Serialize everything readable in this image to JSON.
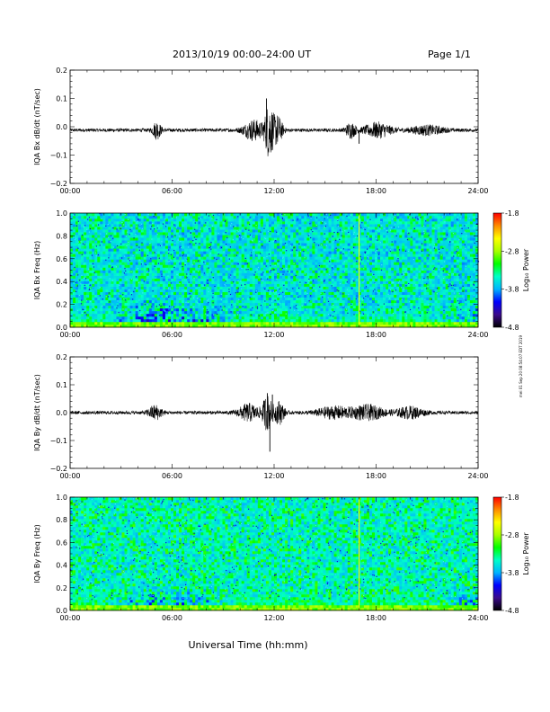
{
  "header": {
    "title": "2013/10/19   00:00–24:00 UT",
    "page": "Page 1/1"
  },
  "footer": {
    "xaxis_label": "Universal Time (hh:mm)",
    "side_note": "mei 01 Sep 20 08:54:07 EDT 2019"
  },
  "colorbar": {
    "label": "Log₁₀ Power",
    "ticks": [
      "-1.8",
      "-2.8",
      "-3.8",
      "-4.8"
    ],
    "tick_values": [
      -1.8,
      -2.8,
      -3.8,
      -4.8
    ],
    "range": [
      -4.8,
      -1.8
    ],
    "colors": [
      "#000000",
      "#3b0a8c",
      "#0000ff",
      "#00b4ff",
      "#00ffc8",
      "#00ff00",
      "#a8ff00",
      "#ffff00",
      "#ff8c00",
      "#ff0000"
    ]
  },
  "chart_data": [
    {
      "type": "line",
      "ylabel": "IQA Bx dB/dt (nT/sec)",
      "x_ticks": [
        "00:00",
        "06:00",
        "12:00",
        "18:00",
        "24:00"
      ],
      "x_tick_values": [
        0,
        6,
        12,
        18,
        24
      ],
      "xlim": [
        0,
        24
      ],
      "y_ticks": [
        "0.2",
        "0.1",
        "0.0",
        "−0.1",
        "−0.2"
      ],
      "y_tick_values": [
        0.2,
        0.1,
        0.0,
        -0.1,
        -0.2
      ],
      "ylim": [
        -0.2,
        0.2
      ],
      "baseline": -0.012,
      "noise_amplitude": 0.006,
      "bursts": [
        {
          "t": 5.1,
          "amp": 0.03,
          "width": 0.25
        },
        {
          "t": 10.8,
          "amp": 0.035,
          "width": 0.6
        },
        {
          "t": 11.7,
          "amp": 0.09,
          "width": 0.25
        },
        {
          "t": 12.2,
          "amp": 0.05,
          "width": 0.3
        },
        {
          "t": 16.5,
          "amp": 0.025,
          "width": 0.3
        },
        {
          "t": 18.1,
          "amp": 0.025,
          "width": 0.8
        },
        {
          "t": 21.0,
          "amp": 0.015,
          "width": 1.0
        }
      ],
      "spikes": [
        {
          "t": 11.55,
          "value": 0.1
        },
        {
          "t": 11.9,
          "value": -0.07
        },
        {
          "t": 17.0,
          "value": -0.06
        }
      ]
    },
    {
      "type": "heatmap",
      "ylabel": "IQA Bx Freq (Hz)",
      "x_ticks": [
        "00:00",
        "06:00",
        "12:00",
        "18:00",
        "24:00"
      ],
      "x_tick_values": [
        0,
        6,
        12,
        18,
        24
      ],
      "xlim": [
        0,
        24
      ],
      "y_ticks": [
        "1.0",
        "0.8",
        "0.6",
        "0.4",
        "0.2",
        "0.0"
      ],
      "y_tick_values": [
        1.0,
        0.8,
        0.6,
        0.4,
        0.2,
        0.0
      ],
      "ylim": [
        0,
        1
      ],
      "zlim": [
        -4.8,
        -1.8
      ],
      "background_level": -3.7,
      "low_freq_enhancements": [
        {
          "t": 0.5,
          "level": -2.9,
          "width": 2.0
        },
        {
          "t": 12.5,
          "level": -2.9,
          "width": 3.0
        },
        {
          "t": 19.0,
          "level": -2.7,
          "width": 3.0
        }
      ],
      "vertical_line": {
        "t": 17.0,
        "level": -2.5
      }
    },
    {
      "type": "line",
      "ylabel": "IQA By dB/dt (nT/sec)",
      "x_ticks": [
        "00:00",
        "06:00",
        "12:00",
        "18:00",
        "24:00"
      ],
      "x_tick_values": [
        0,
        6,
        12,
        18,
        24
      ],
      "xlim": [
        0,
        24
      ],
      "y_ticks": [
        "0.2",
        "0.1",
        "0.0",
        "−0.1",
        "−0.2"
      ],
      "y_tick_values": [
        0.2,
        0.1,
        0.0,
        -0.1,
        -0.2
      ],
      "ylim": [
        -0.2,
        0.2
      ],
      "baseline": 0.0,
      "noise_amplitude": 0.006,
      "bursts": [
        {
          "t": 5.0,
          "amp": 0.025,
          "width": 0.4
        },
        {
          "t": 10.5,
          "amp": 0.03,
          "width": 0.6
        },
        {
          "t": 11.6,
          "amp": 0.06,
          "width": 0.3
        },
        {
          "t": 12.3,
          "amp": 0.04,
          "width": 0.3
        },
        {
          "t": 15.5,
          "amp": 0.02,
          "width": 1.0
        },
        {
          "t": 17.5,
          "amp": 0.025,
          "width": 1.0
        },
        {
          "t": 20.0,
          "amp": 0.02,
          "width": 0.8
        }
      ],
      "spikes": [
        {
          "t": 11.75,
          "value": -0.14
        },
        {
          "t": 11.6,
          "value": 0.07
        },
        {
          "t": 11.9,
          "value": 0.065
        }
      ]
    },
    {
      "type": "heatmap",
      "ylabel": "IQA By Freq (Hz)",
      "x_ticks": [
        "00:00",
        "06:00",
        "12:00",
        "18:00",
        "24:00"
      ],
      "x_tick_values": [
        0,
        6,
        12,
        18,
        24
      ],
      "xlim": [
        0,
        24
      ],
      "y_ticks": [
        "1.0",
        "0.8",
        "0.6",
        "0.4",
        "0.2",
        "0.0"
      ],
      "y_tick_values": [
        1.0,
        0.8,
        0.6,
        0.4,
        0.2,
        0.0
      ],
      "ylim": [
        0,
        1
      ],
      "zlim": [
        -4.8,
        -1.8
      ],
      "background_level": -3.6,
      "low_freq_enhancements": [
        {
          "t": 0.5,
          "level": -2.9,
          "width": 2.0
        },
        {
          "t": 12.5,
          "level": -2.8,
          "width": 3.0
        },
        {
          "t": 18.5,
          "level": -2.8,
          "width": 3.0
        }
      ],
      "vertical_line": {
        "t": 17.0,
        "level": -2.4
      }
    }
  ]
}
